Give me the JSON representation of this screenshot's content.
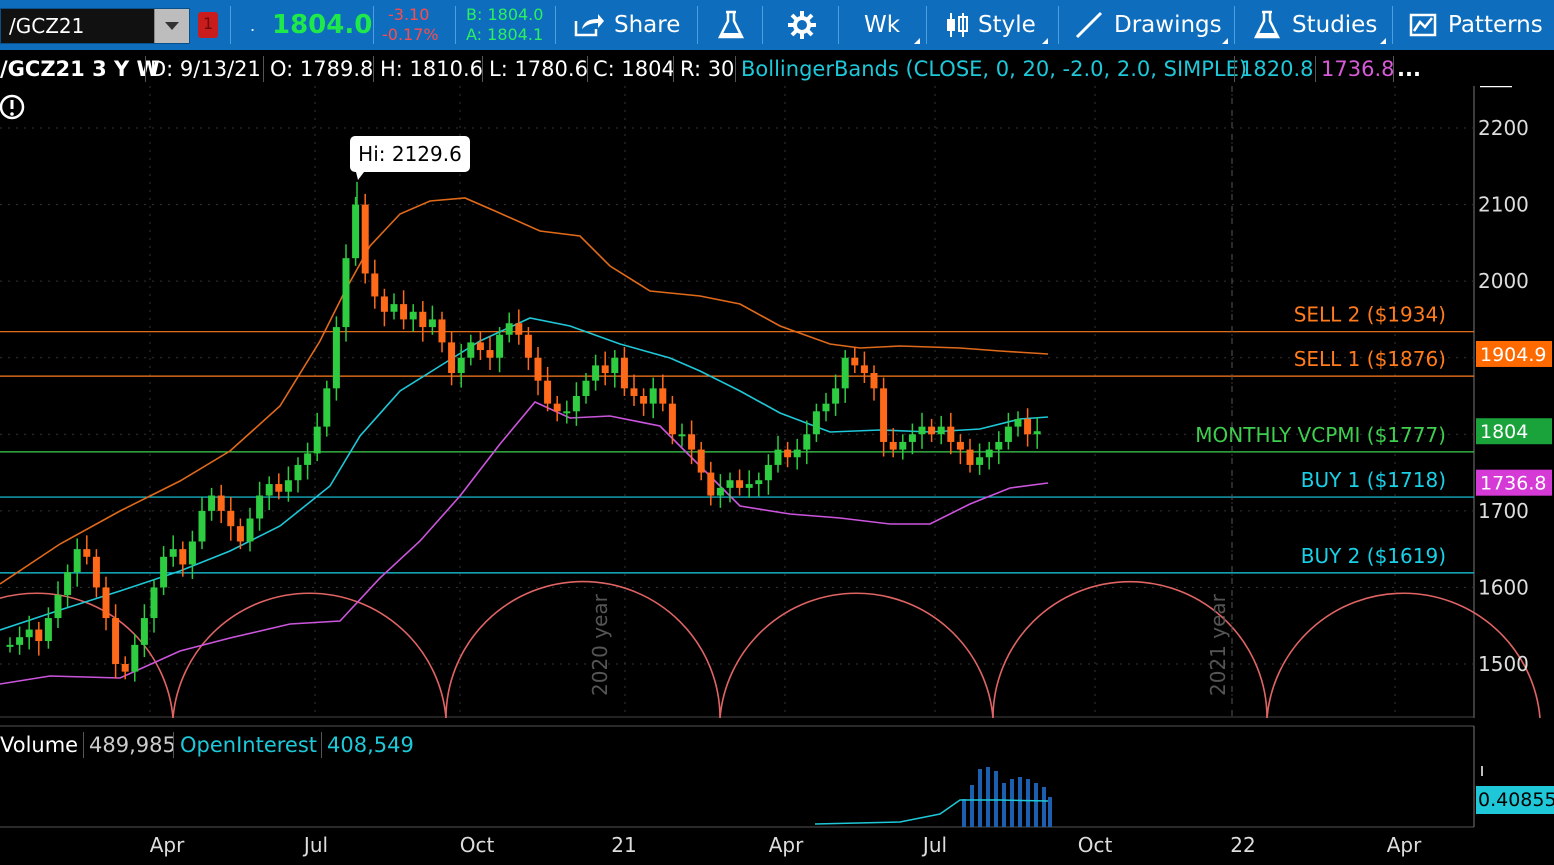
{
  "toolbar": {
    "symbol": "/GCZ21",
    "last": "1804.0",
    "change": "-3.10",
    "change_pct": "-0.17%",
    "bid": "B: 1804.0",
    "ask": "A: 1804.1",
    "share_label": "Share",
    "timeframe_label": "Wk",
    "style_label": "Style",
    "drawings_label": "Drawings",
    "studies_label": "Studies",
    "patterns_label": "Patterns",
    "link_badge": "1",
    "dot_label": "."
  },
  "infobar": {
    "symbol_period": "/GCZ21 3 Y W",
    "date": "D: 9/13/21",
    "open": "O: 1789.8",
    "high": "H: 1810.6",
    "low": "L: 1780.6",
    "close": "C: 1804",
    "range": "R: 30",
    "study": "BollingerBands (CLOSE, 0, 20, -2.0, 2.0, SIMPLE)",
    "upper_value": "1820.8",
    "lower_value": "1736.8",
    "more": "..."
  },
  "price_axis": {
    "ticks": [
      "2200",
      "2100",
      "2000",
      "1700",
      "1600",
      "1500"
    ],
    "badges": [
      {
        "label": "1904.9",
        "color": "#ff6a00",
        "value": 1904.9
      },
      {
        "label": "1804",
        "color": "#1aa33a",
        "value": 1804
      },
      {
        "label": "1736.8",
        "color": "#d63ad6",
        "value": 1736.8
      }
    ]
  },
  "time_axis": {
    "labels": [
      "Apr",
      "Jul",
      "Oct",
      "21",
      "Apr",
      "Jul",
      "Oct",
      "22",
      "Apr"
    ]
  },
  "year_markers": [
    "2020 year",
    "2021 year"
  ],
  "levels": [
    {
      "label": "SELL 2 ($1934)",
      "value": 1934,
      "color": "#ff7b1c"
    },
    {
      "label": "SELL 1 ($1876)",
      "value": 1876,
      "color": "#ff7b1c"
    },
    {
      "label": "MONTHLY VCPMI ($1777)",
      "value": 1777,
      "color": "#3fcf4f"
    },
    {
      "label": "BUY 1 ($1718)",
      "value": 1718,
      "color": "#19d0e6"
    },
    {
      "label": "BUY 2 ($1619)",
      "value": 1619,
      "color": "#19d0e6"
    }
  ],
  "hi_bubble": "Hi: 2129.6",
  "volume": {
    "volume_label": "Volume",
    "volume_value": "489,985",
    "oi_label": "OpenInterest",
    "oi_value": "408,549",
    "axis_badge": "0.40855"
  },
  "colors": {
    "toolbar": "#0e6ebd",
    "up": "#2ecc40",
    "down": "#ff6a1a",
    "bb_upper": "#e06a1a",
    "bb_mid": "#1ec8d8",
    "bb_lower": "#cc55dd",
    "cycles": "#e06464"
  },
  "chart_data": {
    "type": "candlestick",
    "title": "",
    "upper_band": [
      {
        "x": "2019-04-01",
        "y": 1620
      },
      {
        "x": "2019-07-01",
        "y": 1780
      },
      {
        "x": "2019-09-01",
        "y": 2100
      },
      {
        "x": "2019-10-15",
        "y": 2108
      },
      {
        "x": "2020-01-01",
        "y": 2000
      },
      {
        "x": "2020-04-01",
        "y": 1925
      },
      {
        "x": "2020-06-01",
        "y": 1912
      },
      {
        "x": "2020-08-15",
        "y": 1905
      }
    ],
    "mid_band": [
      {
        "x": "2019-01-01",
        "y": 1548
      },
      {
        "x": "2019-07-01",
        "y": 1730
      },
      {
        "x": "2019-10-01",
        "y": 1932
      },
      {
        "x": "2020-01-01",
        "y": 1900
      },
      {
        "x": "2020-04-01",
        "y": 1800
      },
      {
        "x": "2020-07-01",
        "y": 1816
      },
      {
        "x": "2020-08-15",
        "y": 1821
      }
    ],
    "lower_band": [
      {
        "x": "2019-01-01",
        "y": 1488
      },
      {
        "x": "2019-07-01",
        "y": 1562
      },
      {
        "x": "2019-10-01",
        "y": 1840
      },
      {
        "x": "2020-01-01",
        "y": 1760
      },
      {
        "x": "2020-04-01",
        "y": 1690
      },
      {
        "x": "2020-07-01",
        "y": 1718
      },
      {
        "x": "2020-08-15",
        "y": 1736.8
      }
    ]
  }
}
